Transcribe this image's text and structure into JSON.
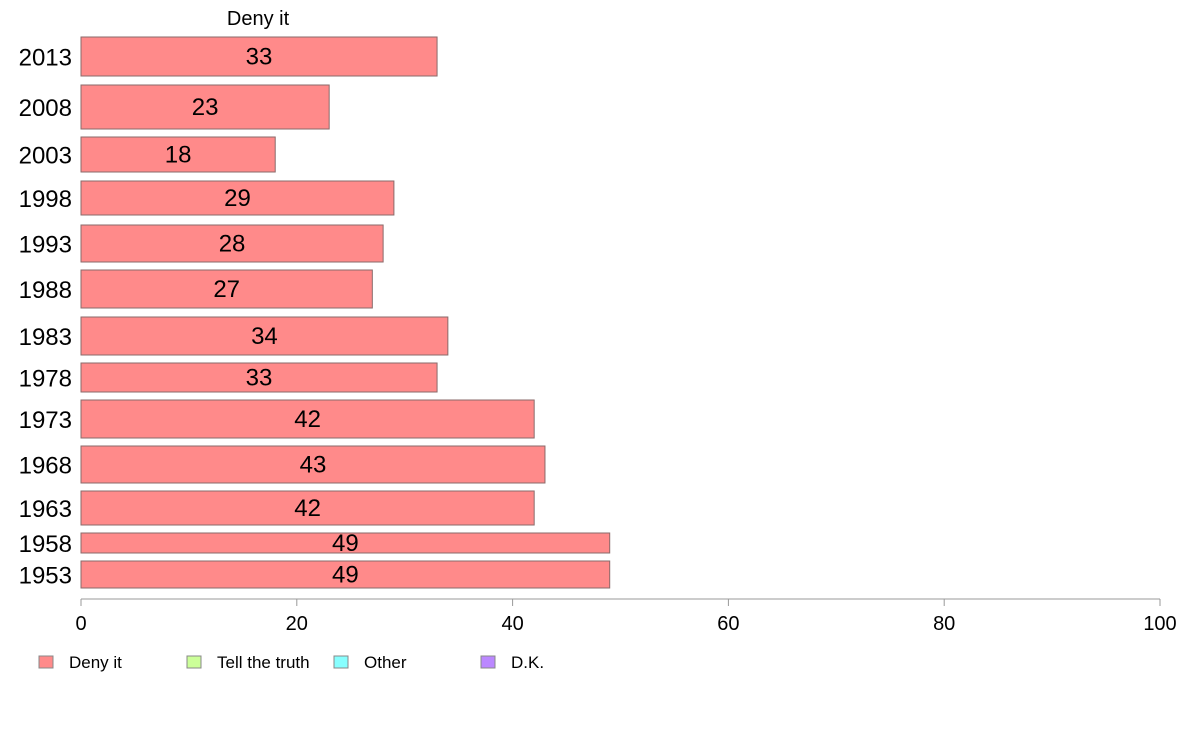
{
  "chart_data": {
    "type": "bar",
    "orientation": "horizontal",
    "title": "Deny it",
    "categories": [
      "2013",
      "2008",
      "2003",
      "1998",
      "1993",
      "1988",
      "1983",
      "1978",
      "1973",
      "1968",
      "1963",
      "1958",
      "1953"
    ],
    "series": [
      {
        "name": "Deny it",
        "color": "#FF8A8A",
        "values": [
          33,
          23,
          18,
          29,
          28,
          27,
          34,
          33,
          42,
          43,
          42,
          49,
          49
        ]
      }
    ],
    "xlim": [
      0,
      100
    ],
    "xticks": [
      0,
      20,
      40,
      60,
      80,
      100
    ],
    "grid": false,
    "legend": {
      "position": "bottom-left",
      "items": [
        {
          "label": "Deny it",
          "color": "#FF8A8A"
        },
        {
          "label": "Tell the truth",
          "color": "#CCFF99"
        },
        {
          "label": "Other",
          "color": "#88FFFF"
        },
        {
          "label": "D.K.",
          "color": "#BB88FF"
        }
      ]
    }
  }
}
